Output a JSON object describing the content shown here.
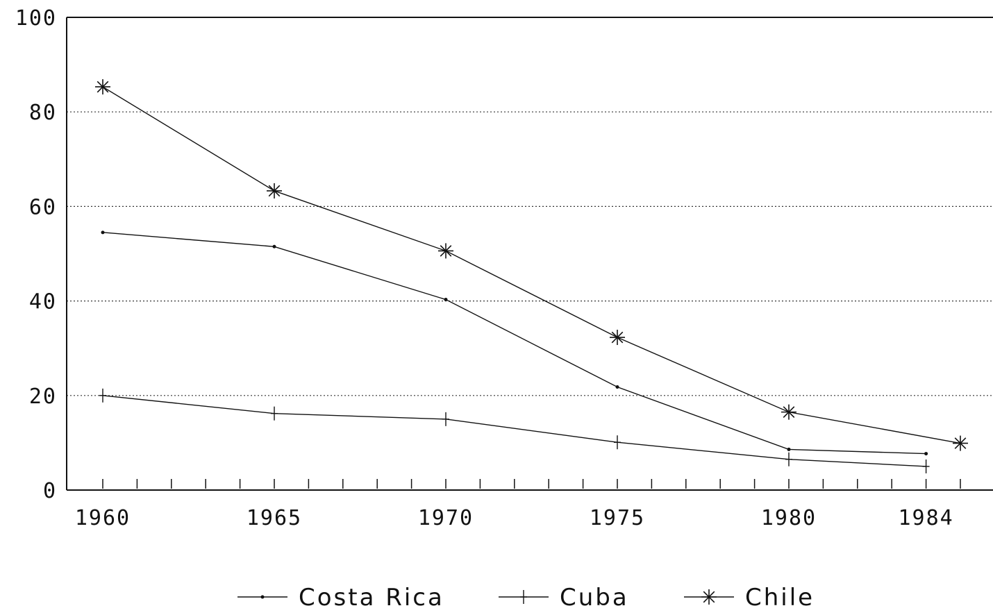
{
  "chart_data": {
    "type": "line",
    "x_tick_labels": [
      "1960",
      "1965",
      "1970",
      "1975",
      "1980",
      "1984"
    ],
    "y_tick_labels": [
      "0",
      "20",
      "40",
      "60",
      "80",
      "100"
    ],
    "ylim": [
      0,
      100
    ],
    "xlim": [
      1959,
      1986
    ],
    "grid": "horizontal dotted",
    "legend_position": "bottom",
    "series": [
      {
        "name": "Costa Rica",
        "marker": "dot",
        "x": [
          1960,
          1965,
          1970,
          1975,
          1980,
          1984
        ],
        "values": [
          54.5,
          51.5,
          40.3,
          21.8,
          8.6,
          7.7
        ]
      },
      {
        "name": "Cuba",
        "marker": "plus",
        "x": [
          1960,
          1965,
          1970,
          1975,
          1980,
          1984
        ],
        "values": [
          20,
          16.2,
          15,
          10.1,
          6.5,
          5
        ]
      },
      {
        "name": "Chile",
        "marker": "asterisk",
        "x": [
          1960,
          1965,
          1970,
          1975,
          1980,
          1985
        ],
        "values": [
          85.3,
          63.3,
          50.6,
          32.3,
          16.5,
          9.9
        ]
      }
    ]
  }
}
